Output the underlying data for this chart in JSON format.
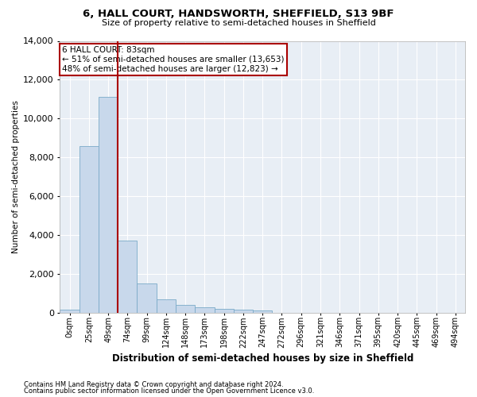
{
  "title1": "6, HALL COURT, HANDSWORTH, SHEFFIELD, S13 9BF",
  "title2": "Size of property relative to semi-detached houses in Sheffield",
  "xlabel": "Distribution of semi-detached houses by size in Sheffield",
  "ylabel": "Number of semi-detached properties",
  "bar_color": "#c8d8eb",
  "bar_edge_color": "#7aaac8",
  "vline_color": "#aa0000",
  "ann_edge_color": "#aa0000",
  "ann_line1": "6 HALL COURT: 83sqm",
  "ann_line2": "← 51% of semi-detached houses are smaller (13,653)",
  "ann_line3": "48% of semi-detached houses are larger (12,823) →",
  "categories": [
    "0sqm",
    "25sqm",
    "49sqm",
    "74sqm",
    "99sqm",
    "124sqm",
    "148sqm",
    "173sqm",
    "198sqm",
    "222sqm",
    "247sqm",
    "272sqm",
    "296sqm",
    "321sqm",
    "346sqm",
    "371sqm",
    "395sqm",
    "420sqm",
    "445sqm",
    "469sqm",
    "494sqm"
  ],
  "values": [
    150,
    8600,
    11100,
    3700,
    1500,
    700,
    400,
    300,
    200,
    150,
    100,
    0,
    0,
    0,
    0,
    0,
    0,
    0,
    0,
    0,
    0
  ],
  "ylim_max": 14000,
  "vline_x_data": 1.5,
  "footer1": "Contains HM Land Registry data © Crown copyright and database right 2024.",
  "footer2": "Contains public sector information licensed under the Open Government Licence v3.0.",
  "plot_bg": "#e8eef5",
  "grid_color": "#ffffff"
}
